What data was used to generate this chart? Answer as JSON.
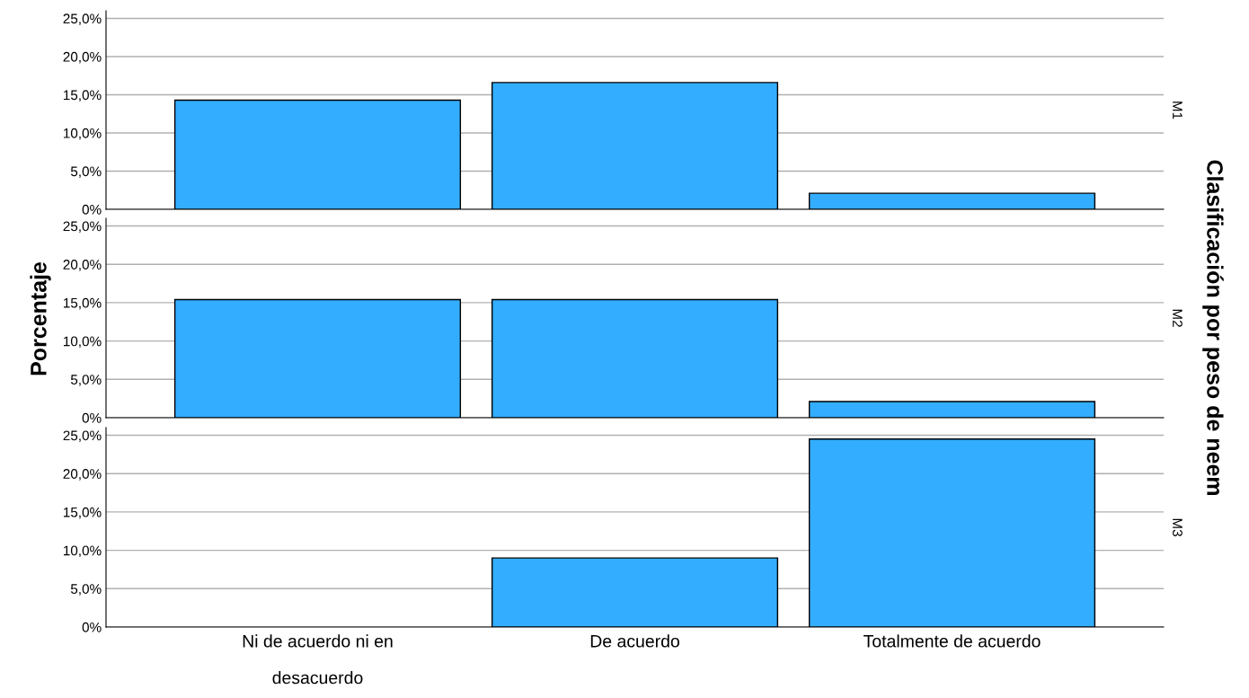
{
  "chart_data": [
    {
      "type": "bar",
      "categories": [
        null,
        null,
        null
      ],
      "values": [
        14.3,
        16.6,
        2.1
      ],
      "color": "#33adff",
      "ylim": [
        0,
        26
      ],
      "yticks": [
        {
          "value": 0,
          "label": "0%"
        },
        {
          "value": 5,
          "label": "5,0%"
        },
        {
          "value": 10,
          "label": "10,0%"
        },
        {
          "value": 15,
          "label": "15,0%"
        },
        {
          "value": 20,
          "label": "20,0%"
        },
        {
          "value": 25,
          "label": "25,0%"
        }
      ],
      "grid": "y",
      "tick_labels": "y",
      "annotations": [
        "M1"
      ]
    },
    {
      "type": "bar",
      "categories": [
        null,
        null,
        null
      ],
      "values": [
        15.4,
        15.4,
        2.1
      ],
      "color": "#33adff",
      "ylim": [
        0,
        26
      ],
      "yticks": [
        {
          "value": 0,
          "label": "0%"
        },
        {
          "value": 5,
          "label": "5,0%"
        },
        {
          "value": 10,
          "label": "10,0%"
        },
        {
          "value": 15,
          "label": "15,0%"
        },
        {
          "value": 20,
          "label": "20,0%"
        },
        {
          "value": 25,
          "label": "25,0%"
        }
      ],
      "grid": "y",
      "tick_labels": "y",
      "annotations": [
        "M2"
      ],
      "ylabel": "Porcentaje",
      "y2label": "Clasificación por peso de neem"
    },
    {
      "type": "bar",
      "categories": [
        "Ni de acuerdo ni en\ndesacuerdo",
        "De acuerdo",
        "Totalmente de acuerdo"
      ],
      "values": [
        null,
        9.0,
        24.5
      ],
      "color": "#33adff",
      "ylim": [
        0,
        26
      ],
      "yticks": [
        {
          "value": 0,
          "label": "0%"
        },
        {
          "value": 5,
          "label": "5,0%"
        },
        {
          "value": 10,
          "label": "10,0%"
        },
        {
          "value": 15,
          "label": "15,0%"
        },
        {
          "value": 20,
          "label": "20,0%"
        },
        {
          "value": 25,
          "label": "25,0%"
        }
      ],
      "grid": "y",
      "annotations": [
        "M3"
      ]
    }
  ]
}
